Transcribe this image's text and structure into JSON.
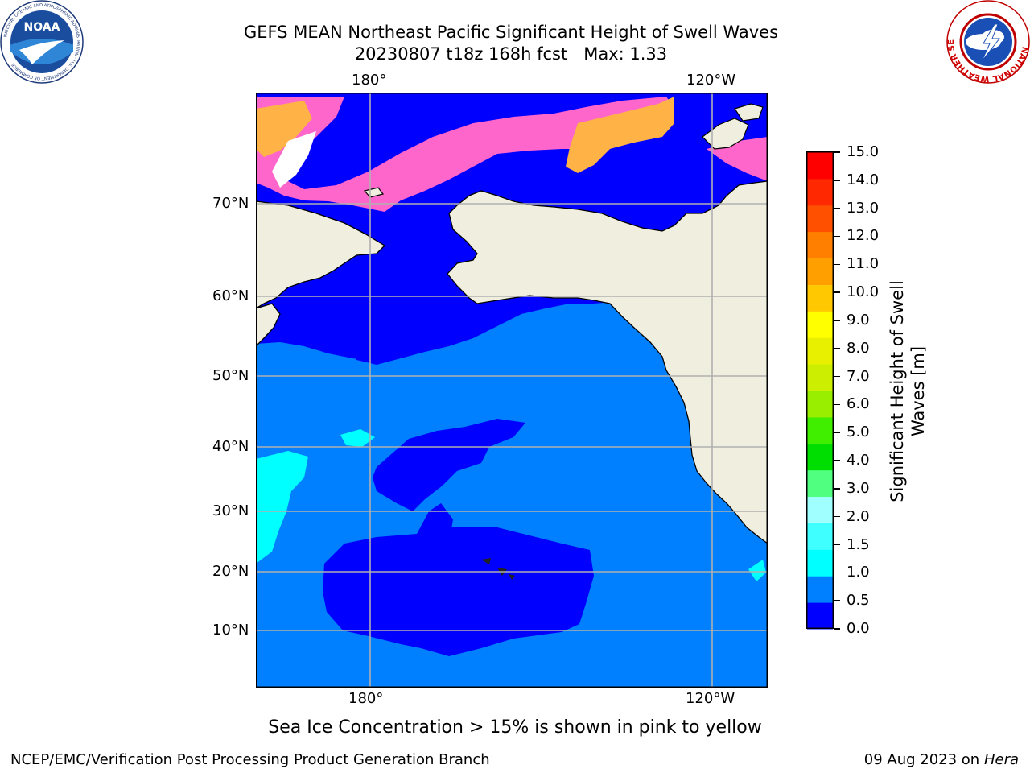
{
  "title_line1": "GEFS MEAN Northeast Pacific Significant Height of Swell Waves",
  "title_line2": "20230807 t18z 168h fcst   Max: 1.33",
  "lon_labels": [
    "180°",
    "120°W"
  ],
  "lat_labels": [
    "70°N",
    "60°N",
    "50°N",
    "40°N",
    "30°N",
    "20°N",
    "10°N"
  ],
  "colorbar": {
    "label_line1": "Significant Height of Swell",
    "label_line2": "Waves [m]",
    "ticks": [
      "0.0",
      "0.5",
      "1.0",
      "1.5",
      "2.0",
      "3.0",
      "4.0",
      "5.0",
      "6.0",
      "7.0",
      "8.0",
      "9.0",
      "10.0",
      "11.0",
      "12.0",
      "13.0",
      "14.0",
      "15.0"
    ],
    "colors": [
      "#0000ff",
      "#0080ff",
      "#00ffff",
      "#40ffff",
      "#a0ffff",
      "#50ff80",
      "#00dd00",
      "#40ee00",
      "#99ee00",
      "#ccee00",
      "#e8f000",
      "#ffff00",
      "#ffc800",
      "#ffa000",
      "#ff8000",
      "#ff5000",
      "#ff2800",
      "#ff0000"
    ]
  },
  "map_colors": {
    "land": "#efeedf",
    "ocean_light": "#0080ff",
    "ocean_dark": "#0000ff",
    "swell_cyan": "#00ffff",
    "ice_pink": "#ff66cc",
    "ice_orange": "#ffb347",
    "grid": "#b0b0b0"
  },
  "note": "Sea Ice Concentration > 15% is shown in pink to yellow",
  "credit": "NCEP/EMC/Verification Post Processing Product Generation Branch",
  "date": "09 Aug 2023 on",
  "host": "Hera",
  "logos": {
    "noaa": "NOAA",
    "noaa_ring": "NATIONAL OCEANIC AND ATMOSPHERIC ADMINISTRATION · U.S. DEPARTMENT OF COMMERCE",
    "nws_ring": "NATIONAL WEATHER SERVICE"
  }
}
